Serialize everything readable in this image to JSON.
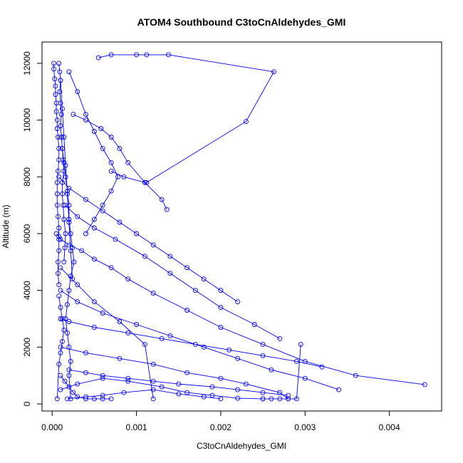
{
  "chart_data": {
    "type": "line",
    "title": "ATOM4 Southbound C3toCnAldehydes_GMI",
    "xlabel": "C3toCnAldehydes_GMI",
    "ylabel": "Altitude (m)",
    "xlim": [
      -0.00012,
      0.00462
    ],
    "ylim": [
      -250,
      12750
    ],
    "xticks": [
      0.0,
      0.001,
      0.002,
      0.003,
      0.004
    ],
    "xtick_labels": [
      "0.000",
      "0.001",
      "0.002",
      "0.003",
      "0.004"
    ],
    "yticks": [
      0,
      2000,
      4000,
      6000,
      8000,
      10000,
      12000
    ],
    "ytick_labels": [
      "0",
      "2000",
      "4000",
      "6000",
      "8000",
      "10000",
      "12000"
    ],
    "color": "#0000ff",
    "grid": false,
    "marker": "open-circle",
    "series": [
      {
        "x": [
          2e-05,
          2e-05,
          3e-05,
          4e-05,
          4e-05,
          5e-05,
          5e-05,
          6e-05,
          6e-05,
          7e-05,
          8e-05,
          8e-05,
          7e-05,
          6e-05,
          6e-05,
          6e-05,
          7e-05,
          8e-05,
          8e-05,
          8e-05,
          7e-05,
          7e-05,
          8e-05
        ],
        "y": [
          12000,
          11800,
          11450,
          11200,
          10900,
          10600,
          10300,
          10000,
          9700,
          9400,
          9000,
          8600,
          8200,
          7800,
          7400,
          7000,
          6600,
          6200,
          5800,
          5400,
          5000,
          4600,
          4200
        ]
      },
      {
        "x": [
          8e-05,
          9e-05,
          0.0001,
          9e-05,
          0.0001,
          0.00011,
          0.0001,
          0.00011,
          0.00012,
          0.00013,
          0.00014,
          0.00012,
          0.00012,
          0.00013,
          0.00014,
          0.00016,
          0.00015,
          0.00014
        ],
        "y": [
          12000,
          11700,
          11400,
          11000,
          10600,
          10200,
          9800,
          9400,
          9000,
          8600,
          8200,
          7800,
          7400,
          7000,
          6500,
          6000,
          5500,
          5000
        ]
      },
      {
        "x": [
          0.00012,
          0.00014,
          0.00016,
          0.00018,
          0.0002,
          0.0002,
          0.00022,
          0.00024,
          0.00026,
          0.00022,
          0.0002,
          0.00018,
          0.00016,
          0.00018,
          0.0002,
          0.00022,
          0.0002,
          0.00022
        ],
        "y": [
          9000,
          8500,
          8000,
          7500,
          7000,
          6500,
          6000,
          5500,
          5000,
          4500,
          4000,
          3500,
          3000,
          2500,
          2000,
          1500,
          1000,
          180
        ]
      },
      {
        "x": [
          0.00055,
          0.0007,
          0.001,
          0.00112,
          0.00138,
          0.00263,
          0.0023,
          0.00112,
          0.0011,
          0.00085,
          0.0007
        ],
        "y": [
          12200,
          12300,
          12300,
          12300,
          12300,
          11700,
          9950,
          7800,
          7800,
          8000,
          8200
        ]
      },
      {
        "x": [
          5e-05,
          8e-05,
          0.0001,
          0.0002,
          0.00035,
          0.0005,
          0.0007,
          0.0009,
          0.0012,
          0.0016,
          0.002,
          0.0025,
          0.003,
          0.0036,
          0.00442
        ],
        "y": [
          6000,
          5900,
          5800,
          5600,
          5400,
          5100,
          4800,
          4400,
          3900,
          3300,
          2700,
          2100,
          1500,
          1000,
          680
        ]
      },
      {
        "x": [
          0.0001,
          0.0003,
          0.0006,
          0.001,
          0.0014,
          0.0018,
          0.0022,
          0.0026,
          0.003,
          0.0034
        ],
        "y": [
          4000,
          3600,
          3200,
          2800,
          2400,
          2000,
          1600,
          1200,
          900,
          500
        ]
      },
      {
        "x": [
          0.0001,
          0.0004,
          0.0008,
          0.0012,
          0.0016,
          0.002,
          0.0023,
          0.0027,
          0.0028
        ],
        "y": [
          2000,
          1800,
          1600,
          1400,
          1100,
          900,
          700,
          400,
          180
        ]
      },
      {
        "x": [
          0.0001,
          0.0002,
          0.0005,
          0.0009,
          0.0013,
          0.0017,
          0.0021,
          0.0025,
          0.0029,
          0.0032
        ],
        "y": [
          3000,
          2900,
          2700,
          2500,
          2300,
          2100,
          1900,
          1700,
          1500,
          1300
        ]
      },
      {
        "x": [
          8e-05,
          0.0002,
          0.0004,
          0.0006,
          0.0008,
          0.001,
          0.0012,
          0.0014,
          0.0016,
          0.0018,
          0.002,
          0.0022
        ],
        "y": [
          8000,
          7600,
          7200,
          6800,
          6400,
          6000,
          5600,
          5200,
          4800,
          4400,
          4000,
          3600
        ]
      },
      {
        "x": [
          0.00015,
          0.0003,
          0.0005,
          0.00075,
          0.0011,
          0.0014,
          0.0017,
          0.002,
          0.0024,
          0.0027
        ],
        "y": [
          7000,
          6600,
          6200,
          5800,
          5200,
          4600,
          4000,
          3400,
          2800,
          2300
        ]
      },
      {
        "x": [
          0.0001,
          0.0003,
          0.0006,
          0.0009,
          0.0013,
          0.0016,
          0.0019,
          0.0022,
          0.0025
        ],
        "y": [
          500,
          700,
          900,
          800,
          600,
          400,
          300,
          200,
          180
        ]
      },
      {
        "x": [
          0.00018,
          0.0004,
          0.0006,
          0.00085,
          0.0012,
          0.0015,
          0.0018,
          0.002
        ],
        "y": [
          180,
          250,
          300,
          400,
          500,
          350,
          250,
          180
        ]
      },
      {
        "x": [
          0.0002,
          0.0003,
          0.0004,
          0.0005,
          0.0006,
          0.0007,
          0.00078,
          0.0007,
          0.0006,
          0.0005,
          0.0004
        ],
        "y": [
          11700,
          11000,
          10200,
          9600,
          9000,
          8500,
          8000,
          7500,
          7000,
          6500,
          6000
        ]
      },
      {
        "x": [
          0.00025,
          0.0004,
          0.00058,
          0.0007,
          0.0008,
          0.0009,
          0.0011,
          0.0013,
          0.00136
        ],
        "y": [
          10200,
          10000,
          9700,
          9400,
          9000,
          8500,
          7800,
          7200,
          6850
        ]
      },
      {
        "x": [
          0.0001,
          0.00015,
          0.0002,
          0.00025,
          0.0003,
          0.0004,
          0.0005,
          0.0006,
          0.0007
        ],
        "y": [
          1000,
          800,
          600,
          400,
          250,
          180,
          180,
          180,
          180
        ]
      },
      {
        "x": [
          0.0025,
          0.0026,
          0.0027,
          0.0028,
          0.0029,
          0.00295
        ],
        "y": [
          180,
          180,
          180,
          180,
          180,
          2100
        ]
      },
      {
        "x": [
          0.0001,
          0.0003,
          0.0005,
          0.0008,
          0.0011,
          0.0012
        ],
        "y": [
          4800,
          4200,
          3600,
          2900,
          2100,
          180
        ]
      },
      {
        "x": [
          0.0002,
          0.0004,
          0.0006,
          0.0009,
          0.0012,
          0.0015,
          0.0019,
          0.0022,
          0.0025,
          0.0028
        ],
        "y": [
          1200,
          1100,
          1000,
          900,
          800,
          700,
          600,
          500,
          400,
          300
        ]
      },
      {
        "x": [
          0.0001,
          0.00012,
          0.00014,
          0.00016,
          0.00018,
          0.0002,
          0.00022,
          0.00024
        ],
        "y": [
          11400,
          10400,
          9400,
          8400,
          7400,
          6400,
          5400,
          4400
        ]
      },
      {
        "x": [
          8e-05,
          0.0001,
          0.00012,
          0.00014,
          0.00012,
          0.0001,
          8e-05,
          6e-05
        ],
        "y": [
          3800,
          3400,
          3000,
          2600,
          2200,
          1800,
          1400,
          180
        ]
      }
    ]
  }
}
